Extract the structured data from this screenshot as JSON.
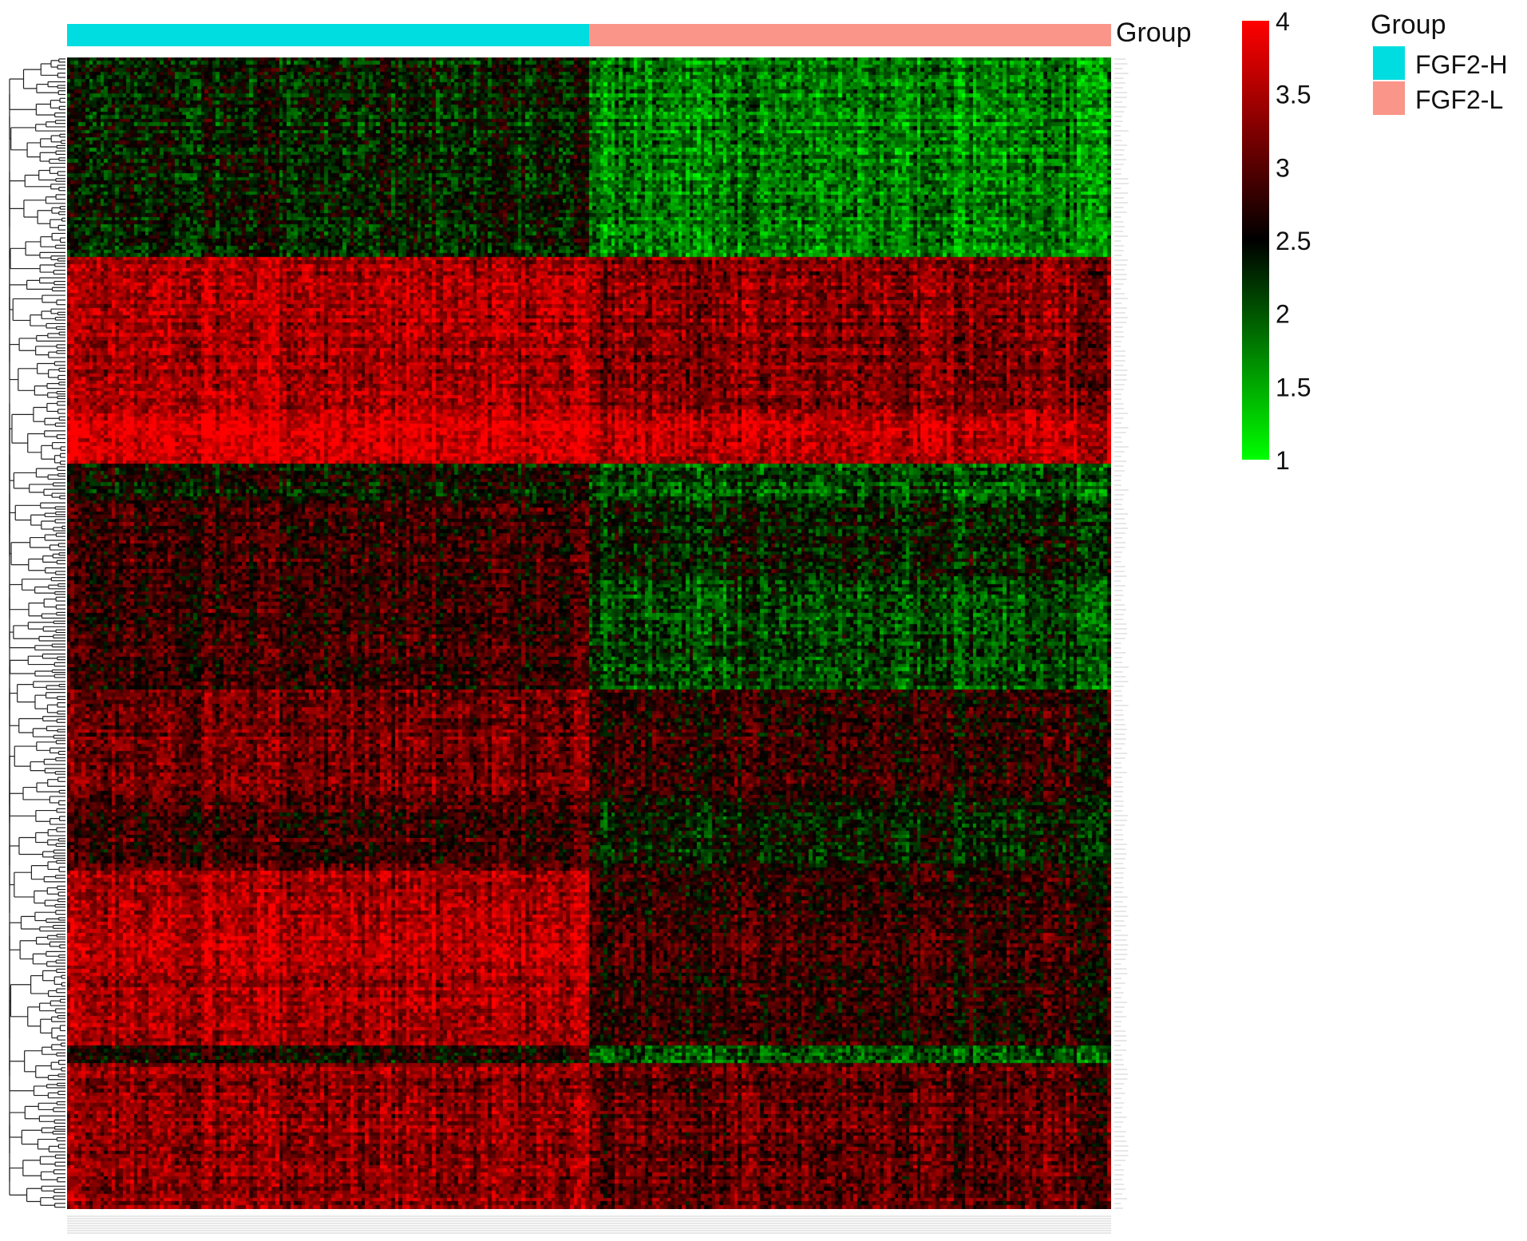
{
  "chart_data": {
    "type": "heatmap",
    "title": "",
    "xlabel": "",
    "ylabel": "",
    "annotation": {
      "label": "Group",
      "legend_title": "Group",
      "groups": [
        {
          "name": "FGF2-H",
          "color": "#00DDE0",
          "fraction_of_columns": 0.5
        },
        {
          "name": "FGF2-L",
          "color": "#FA9589",
          "fraction_of_columns": 0.5
        }
      ]
    },
    "colorbar": {
      "range": [
        1,
        4
      ],
      "ticks": [
        "4",
        "3.5",
        "3",
        "2.5",
        "2",
        "1.5",
        "1"
      ],
      "tick_values": [
        4,
        3.5,
        3,
        2.5,
        2,
        1.5,
        1
      ],
      "colors": {
        "low": "#00FF00",
        "mid": "#000000",
        "high": "#FF0000"
      }
    },
    "row_blocks": [
      {
        "rows": 55,
        "mean_fgf2_h": 2.35,
        "mean_fgf2_l": 1.75
      },
      {
        "rows": 42,
        "mean_fgf2_h": 3.5,
        "mean_fgf2_l": 3.25
      },
      {
        "rows": 15,
        "mean_fgf2_h": 3.8,
        "mean_fgf2_l": 3.6
      },
      {
        "rows": 10,
        "mean_fgf2_h": 2.5,
        "mean_fgf2_l": 2.05
      },
      {
        "rows": 22,
        "mean_fgf2_h": 2.85,
        "mean_fgf2_l": 2.4
      },
      {
        "rows": 30,
        "mean_fgf2_h": 2.8,
        "mean_fgf2_l": 2.1
      },
      {
        "rows": 30,
        "mean_fgf2_h": 3.15,
        "mean_fgf2_l": 2.75
      },
      {
        "rows": 20,
        "mean_fgf2_h": 2.9,
        "mean_fgf2_l": 2.45
      },
      {
        "rows": 48,
        "mean_fgf2_h": 3.5,
        "mean_fgf2_l": 2.75
      },
      {
        "rows": 5,
        "mean_fgf2_h": 2.6,
        "mean_fgf2_l": 2.0
      },
      {
        "rows": 40,
        "mean_fgf2_h": 3.3,
        "mean_fgf2_l": 3.0
      }
    ],
    "columns_per_group": 140,
    "row_dendrogram": true,
    "column_dendrogram": false,
    "legend_placement": "top-right"
  }
}
